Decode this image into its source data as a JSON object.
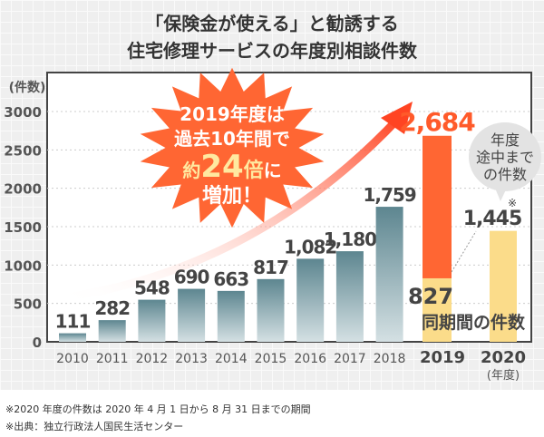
{
  "title_line1": "「保険金が使える」と勧誘する",
  "title_line2": "住宅修理サービスの年度別相談件数",
  "chart_data": {
    "type": "bar",
    "ylabel": "(件数)",
    "xlabel": "(年度)",
    "ylim": [
      0,
      3000
    ],
    "yticks": [
      0,
      500,
      1000,
      1500,
      2000,
      2500,
      3000
    ],
    "grid": true,
    "categories": [
      "2010",
      "2011",
      "2012",
      "2013",
      "2014",
      "2015",
      "2016",
      "2017",
      "2018",
      "2019",
      "2020"
    ],
    "values": [
      111,
      282,
      548,
      690,
      663,
      817,
      1082,
      1180,
      1759,
      2684,
      1445
    ],
    "value_labels": [
      "111",
      "282",
      "548",
      "690",
      "663",
      "817",
      "1,082",
      "1,180",
      "1,759",
      "2,684",
      "1,445"
    ],
    "same_period_2019": {
      "value": 827,
      "label": "827"
    },
    "same_period_label": "同期間の件数",
    "partial_year_bubble": [
      "年度",
      "途中まで",
      "の件数"
    ],
    "partial_year_mark": "※",
    "callout": {
      "line1": "2019年度は",
      "line2": "過去10年間で",
      "line3a": "約",
      "line3b": "24",
      "line3c": "倍",
      "line3d": "に",
      "line4": "増加！"
    },
    "colors": {
      "bars": "#6e8f97",
      "highlight": "#ff6633",
      "same_period": "#fbdc8a",
      "callout": "#ff6633"
    }
  },
  "notes": [
    "※2020 年度の件数は 2020 年 4 月 1 日から 8 月 31 日までの期間",
    "※出典：独立行政法人国民生活センター"
  ]
}
